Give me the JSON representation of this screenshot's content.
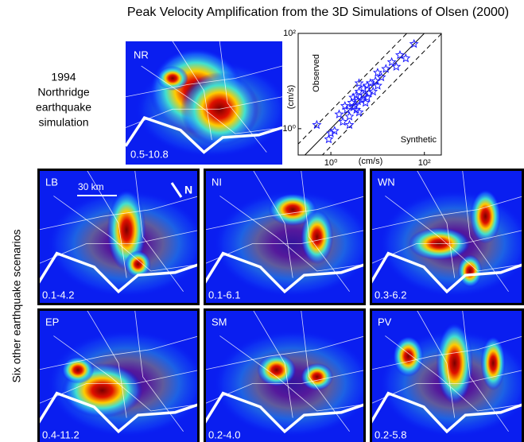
{
  "title": "Peak Velocity Amplification from the 3D Simulations of Olsen (2000)",
  "northridge": {
    "caption": [
      "1994",
      "Northridge",
      "earthquake",
      "simulation"
    ],
    "code": "NR",
    "range": "0.5-10.8"
  },
  "side_label": "Six other earthquake scenarios",
  "scale_bar": "30 km",
  "north": "N",
  "panels": [
    {
      "code": "LB",
      "range": "0.1-4.2"
    },
    {
      "code": "NI",
      "range": "0.1-6.1"
    },
    {
      "code": "WN",
      "range": "0.3-6.2"
    },
    {
      "code": "EP",
      "range": "0.4-11.2"
    },
    {
      "code": "SM",
      "range": "0.2-4.0"
    },
    {
      "code": "PV",
      "range": "0.2-5.8"
    }
  ],
  "chart_data": {
    "type": "scatter",
    "log_x": true,
    "log_y": true,
    "color": "#1a1aff",
    "x_label": "(cm/s)",
    "y_label": "(cm/s)",
    "annotations": [
      "Observed",
      "Synthetic"
    ],
    "x": [
      0.5,
      0.9,
      1.2,
      1.5,
      1.8,
      2,
      2.2,
      2.5,
      2.8,
      3,
      3,
      3.2,
      3.5,
      3.8,
      4,
      4,
      4.5,
      5,
      5,
      5.5,
      6,
      6.5,
      7,
      8,
      9,
      10,
      10,
      12,
      15,
      20,
      25,
      30,
      40,
      60,
      1,
      2.5,
      3.5,
      4,
      6
    ],
    "values": [
      1.2,
      0.6,
      0.9,
      2,
      1.4,
      3,
      2.5,
      1.8,
      3.5,
      2.8,
      4.5,
      3,
      5,
      3.8,
      2.2,
      6,
      4,
      5,
      7,
      3.5,
      8,
      5.5,
      9,
      6,
      10,
      8,
      15,
      12,
      18,
      25,
      20,
      35,
      30,
      60,
      0.8,
      1.2,
      2.5,
      9,
      4.5
    ],
    "xlim": [
      0.2,
      230
    ],
    "ylim": [
      0.28,
      100
    ],
    "xticks": [
      {
        "value": 1,
        "label": "10⁰"
      },
      {
        "value": 100,
        "label": "10²"
      }
    ],
    "yticks": [
      {
        "value": 1,
        "label": "10⁰"
      },
      {
        "value": 100,
        "label": "10²"
      }
    ]
  }
}
